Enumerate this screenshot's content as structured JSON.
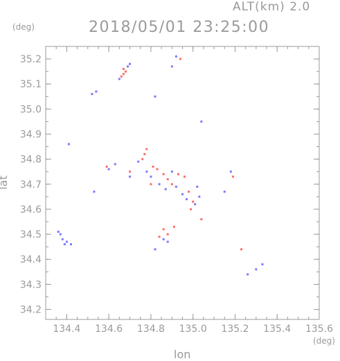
{
  "chart_data": {
    "type": "scatter",
    "header": {
      "altitude": "ALT(km)  2.0",
      "timestamp": "2018/05/01  23:25:00"
    },
    "xlabel": "lon",
    "ylabel": "lat",
    "x_unit": "(deg)",
    "y_unit": "(deg)",
    "xlim": [
      134.3,
      135.6
    ],
    "ylim": [
      34.16,
      35.25
    ],
    "x_ticks": [
      134.4,
      134.6,
      134.8,
      135.0,
      135.2,
      135.4,
      135.6
    ],
    "y_ticks": [
      34.2,
      34.3,
      34.4,
      34.5,
      34.6,
      34.7,
      34.8,
      34.9,
      35.0,
      35.1,
      35.2
    ],
    "grid": false,
    "colors": {
      "axis": "#9a9a9a",
      "positive": "#ff6a6a",
      "negative": "#7a7aff"
    },
    "series": [
      {
        "color": "#ff6a6a",
        "points": [
          [
            134.66,
            35.13
          ],
          [
            134.67,
            35.14
          ],
          [
            134.68,
            35.15
          ],
          [
            134.67,
            35.16
          ],
          [
            134.94,
            35.2
          ],
          [
            134.78,
            34.84
          ],
          [
            134.77,
            34.82
          ],
          [
            134.76,
            34.8
          ],
          [
            134.81,
            34.77
          ],
          [
            134.83,
            34.76
          ],
          [
            134.86,
            34.74
          ],
          [
            134.88,
            34.72
          ],
          [
            134.9,
            34.7
          ],
          [
            134.93,
            34.74
          ],
          [
            134.96,
            34.73
          ],
          [
            134.98,
            34.67
          ],
          [
            135.0,
            34.63
          ],
          [
            134.99,
            34.6
          ],
          [
            135.04,
            34.56
          ],
          [
            134.88,
            34.5
          ],
          [
            134.86,
            34.52
          ],
          [
            134.91,
            34.53
          ],
          [
            134.84,
            34.49
          ],
          [
            135.19,
            34.73
          ],
          [
            135.23,
            34.44
          ],
          [
            134.59,
            34.77
          ],
          [
            134.7,
            34.75
          ],
          [
            134.8,
            34.7
          ]
        ]
      },
      {
        "color": "#7a7aff",
        "points": [
          [
            134.65,
            35.12
          ],
          [
            134.69,
            35.17
          ],
          [
            134.7,
            35.18
          ],
          [
            134.92,
            35.21
          ],
          [
            134.9,
            35.17
          ],
          [
            134.54,
            35.07
          ],
          [
            134.52,
            35.06
          ],
          [
            134.82,
            35.05
          ],
          [
            135.04,
            34.95
          ],
          [
            134.41,
            34.86
          ],
          [
            134.53,
            34.67
          ],
          [
            134.63,
            34.78
          ],
          [
            134.7,
            34.73
          ],
          [
            134.74,
            34.79
          ],
          [
            134.78,
            34.75
          ],
          [
            134.8,
            34.73
          ],
          [
            134.84,
            34.7
          ],
          [
            134.87,
            34.68
          ],
          [
            134.9,
            34.75
          ],
          [
            134.92,
            34.69
          ],
          [
            134.95,
            34.66
          ],
          [
            134.97,
            34.64
          ],
          [
            135.01,
            34.62
          ],
          [
            135.03,
            34.65
          ],
          [
            135.02,
            34.69
          ],
          [
            135.15,
            34.67
          ],
          [
            135.18,
            34.75
          ],
          [
            134.86,
            34.48
          ],
          [
            134.88,
            34.47
          ],
          [
            134.82,
            34.44
          ],
          [
            134.37,
            34.5
          ],
          [
            134.38,
            34.48
          ],
          [
            134.4,
            34.47
          ],
          [
            134.42,
            34.46
          ],
          [
            134.36,
            34.51
          ],
          [
            134.39,
            34.46
          ],
          [
            135.33,
            34.38
          ],
          [
            135.26,
            34.34
          ],
          [
            135.3,
            34.36
          ],
          [
            134.6,
            34.76
          ]
        ]
      }
    ]
  }
}
